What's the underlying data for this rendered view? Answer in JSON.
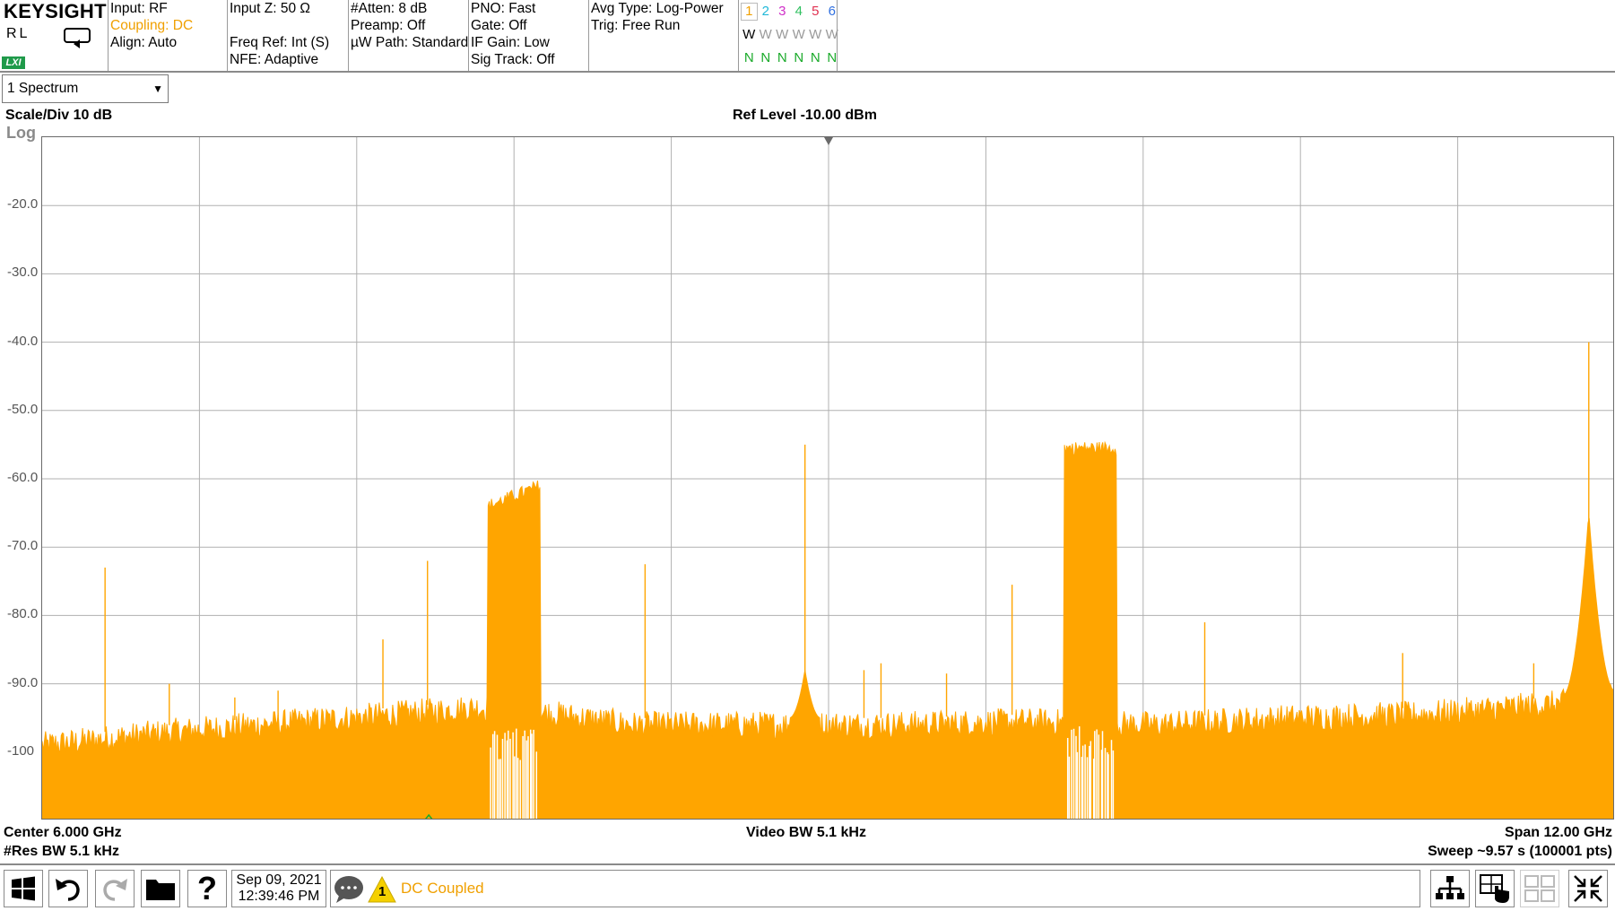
{
  "brand": {
    "name": "KEYSIGHT",
    "mode": "RL",
    "lxi": "LXI"
  },
  "status": {
    "col1": [
      "Input: RF",
      "Coupling: DC",
      "Align: Auto"
    ],
    "col2": [
      "Input Z: 50 Ω",
      "",
      "Freq Ref: Int (S)",
      "NFE: Adaptive"
    ],
    "col3": [
      "#Atten: 8 dB",
      "Preamp: Off",
      "µW Path: Standard"
    ],
    "col4": [
      "PNO: Fast",
      "Gate: Off",
      "IF Gain: Low",
      "Sig Track: Off"
    ],
    "col5": [
      "Avg Type: Log-Power",
      "Trig: Free Run"
    ]
  },
  "traces": {
    "numbers": [
      "1",
      "2",
      "3",
      "4",
      "5",
      "6"
    ],
    "number_colors": [
      "#f0a000",
      "#20b8d8",
      "#d030c8",
      "#30c060",
      "#e03050",
      "#3070e0"
    ],
    "types": [
      "W",
      "W",
      "W",
      "W",
      "W",
      "W"
    ],
    "detectors": [
      "N",
      "N",
      "N",
      "N",
      "N",
      "N"
    ]
  },
  "window_select": {
    "label": "1 Spectrum"
  },
  "plot_labels": {
    "scale_div": "Scale/Div 10 dB",
    "scale_mode": "Log",
    "ref_level": "Ref Level -10.00 dBm",
    "center": "Center 6.000 GHz",
    "res_bw": "#Res BW 5.1 kHz",
    "video_bw": "Video BW 5.1 kHz",
    "span": "Span 12.00 GHz",
    "sweep": "Sweep ~9.57 s (100001 pts)"
  },
  "chart_data": {
    "type": "line",
    "trace_color": "#ffa500",
    "grid": true,
    "ylim": [
      -110,
      -10
    ],
    "xlim": [
      0,
      12
    ],
    "y_tick_labels": [
      "-20.0",
      "-30.0",
      "-40.0",
      "-50.0",
      "-60.0",
      "-70.0",
      "-80.0",
      "-90.0",
      "-100"
    ],
    "y_ticks": [
      -20,
      -30,
      -40,
      -50,
      -60,
      -70,
      -80,
      -90,
      -100
    ],
    "noise_floor": [
      {
        "x": 0,
        "y": -98
      },
      {
        "x": 1,
        "y": -96
      },
      {
        "x": 2,
        "y": -94.5
      },
      {
        "x": 3,
        "y": -93
      },
      {
        "x": 3.3,
        "y": -92.5
      },
      {
        "x": 3.75,
        "y": -93
      },
      {
        "x": 4.5,
        "y": -95
      },
      {
        "x": 5.5,
        "y": -95
      },
      {
        "x": 6.5,
        "y": -95
      },
      {
        "x": 7.5,
        "y": -94.5
      },
      {
        "x": 8.5,
        "y": -95
      },
      {
        "x": 9.5,
        "y": -94
      },
      {
        "x": 10.5,
        "y": -93.5
      },
      {
        "x": 11.5,
        "y": -92
      },
      {
        "x": 12,
        "y": -91
      }
    ],
    "bands": [
      {
        "x_start": 3.4,
        "x_end": 3.8,
        "level_start": -64,
        "level_end": -61
      },
      {
        "x_start": 7.8,
        "x_end": 8.2,
        "level_start": -55.5,
        "level_end": -55.5
      }
    ],
    "spurs": [
      {
        "x": 0.48,
        "y": -73
      },
      {
        "x": 0.97,
        "y": -90
      },
      {
        "x": 1.47,
        "y": -92
      },
      {
        "x": 1.8,
        "y": -91
      },
      {
        "x": 2.6,
        "y": -83.5
      },
      {
        "x": 2.94,
        "y": -72
      },
      {
        "x": 4.6,
        "y": -72.5
      },
      {
        "x": 5.82,
        "y": -55
      },
      {
        "x": 6.27,
        "y": -88
      },
      {
        "x": 6.4,
        "y": -87
      },
      {
        "x": 6.9,
        "y": -88.5
      },
      {
        "x": 7.4,
        "y": -75.5
      },
      {
        "x": 8.87,
        "y": -81
      },
      {
        "x": 10.38,
        "y": -85.5
      },
      {
        "x": 11.38,
        "y": -87
      },
      {
        "x": 11.8,
        "y": -40
      }
    ],
    "humps": [
      {
        "x": 5.82,
        "width": 0.12,
        "peak": -88
      },
      {
        "x": 11.8,
        "width": 0.2,
        "peak": -65
      }
    ],
    "marker_x": 6.0,
    "bottom_marker_x": 2.95
  },
  "message_bar": {
    "text": "DC Coupled",
    "warning_count": "1"
  },
  "datetime": {
    "date": "Sep 09, 2021",
    "time": "12:39:46 PM"
  },
  "icons": {
    "windows": "windows-icon",
    "undo": "undo-icon",
    "redo": "redo-icon",
    "folder": "folder-icon",
    "help": "help-icon",
    "messages": "chat-bubble-icon",
    "warning": "warning-icon",
    "layout": "window-layout-icon",
    "touch": "touch-icon",
    "multiscreen": "multiscreen-icon",
    "zoom": "zoom-window-icon"
  }
}
